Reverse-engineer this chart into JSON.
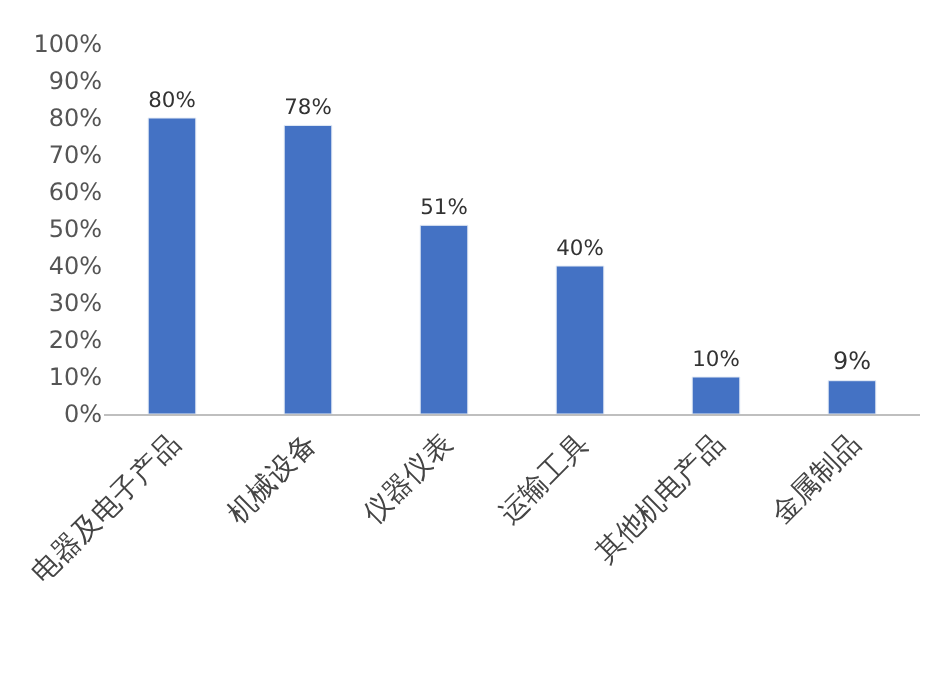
{
  "chart_data": {
    "type": "bar",
    "categories": [
      "电器及电子产品",
      "机械设备",
      "仪器仪表",
      "运输工具",
      "其他机电产品",
      "金属制品"
    ],
    "values": [
      80,
      78,
      51,
      40,
      10,
      9
    ],
    "value_labels": [
      "80%",
      "78%",
      "51%",
      "40%",
      "10%",
      "9%"
    ],
    "color": "#4472c4",
    "ylim": [
      0,
      100
    ],
    "yticks": [
      {
        "value": 0,
        "label": "0%"
      },
      {
        "value": 10,
        "label": "10%"
      },
      {
        "value": 20,
        "label": "20%"
      },
      {
        "value": 30,
        "label": "30%"
      },
      {
        "value": 40,
        "label": "40%"
      },
      {
        "value": 50,
        "label": "50%"
      },
      {
        "value": 60,
        "label": "60%"
      },
      {
        "value": 70,
        "label": "70%"
      },
      {
        "value": 80,
        "label": "80%"
      },
      {
        "value": 90,
        "label": "90%"
      },
      {
        "value": 100,
        "label": "100%"
      }
    ],
    "legend": false
  }
}
